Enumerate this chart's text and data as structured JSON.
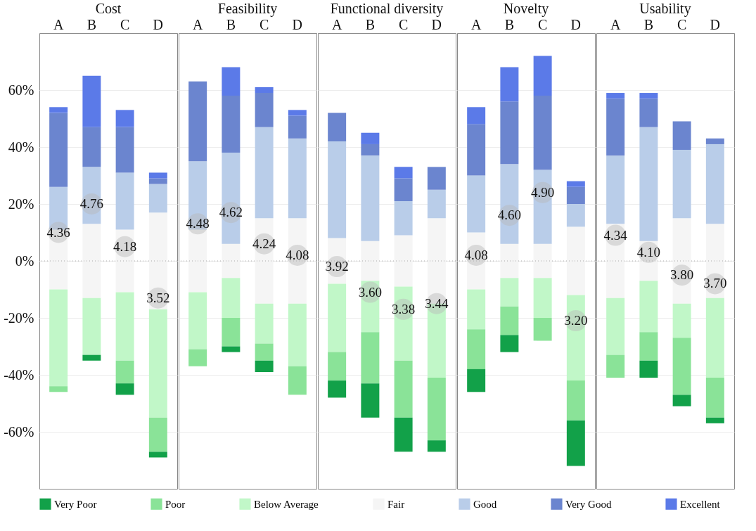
{
  "chart_data": [
    {
      "type": "bar",
      "title": "Cost",
      "categories": [
        "A",
        "B",
        "C",
        "D"
      ],
      "stacked": true,
      "ylim": [
        -80,
        80
      ],
      "yticks": [
        {
          "value": -60,
          "label": "-60%"
        },
        {
          "value": -40,
          "label": "-40%"
        },
        {
          "value": -20,
          "label": "-20%"
        },
        {
          "value": 0,
          "label": "0%"
        },
        {
          "value": 20,
          "label": "20%"
        },
        {
          "value": 40,
          "label": "40%"
        },
        {
          "value": 60,
          "label": "60%"
        }
      ],
      "grid": "y",
      "legend": "bottom",
      "ref_lines": [
        {
          "axis": "y",
          "value": 0,
          "line_style": "dotted"
        }
      ],
      "series": [
        {
          "name": "Fair",
          "color": "#f5f5f5",
          "values": [
            11,
            13,
            11,
            17
          ]
        },
        {
          "name": "Good",
          "color": "#b9cde9",
          "values": [
            15,
            20,
            20,
            10
          ]
        },
        {
          "name": "Very Good",
          "color": "#6b85cf",
          "values": [
            26,
            14,
            16,
            2
          ]
        },
        {
          "name": "Excellent",
          "color": "#5b7ae8",
          "values": [
            2,
            18,
            6,
            2
          ]
        },
        {
          "color": "#f5f5f5",
          "values": [
            -10,
            -13,
            -11,
            -17
          ]
        },
        {
          "name": "Below Average",
          "color": "#c1f7c8",
          "values": [
            -34,
            -20,
            -24,
            -38
          ]
        },
        {
          "name": "Poor",
          "color": "#8ae398",
          "values": [
            -2,
            0,
            -8,
            -12
          ]
        },
        {
          "name": "Very Poor",
          "color": "#12a149",
          "values": [
            0,
            -2,
            -4,
            -2
          ]
        }
      ],
      "annotations": [
        {
          "text": "4.36",
          "x": "A",
          "y": 10
        },
        {
          "text": "4.76",
          "x": "B",
          "y": 20
        },
        {
          "text": "4.18",
          "x": "C",
          "y": 5
        },
        {
          "text": "3.52",
          "x": "D",
          "y": -13
        }
      ]
    },
    {
      "type": "bar",
      "title": "Feasibility",
      "categories": [
        "A",
        "B",
        "C",
        "D"
      ],
      "stacked": true,
      "ylim": [
        -80,
        80
      ],
      "yticks": [
        -60,
        -40,
        -20,
        0,
        20,
        40,
        60
      ],
      "tick_labels": "x",
      "grid": "y",
      "ref_lines": [
        {
          "axis": "y",
          "value": 0,
          "line_style": "dotted"
        }
      ],
      "series": [
        {
          "color": "#f5f5f5",
          "values": [
            11,
            6,
            15,
            15
          ]
        },
        {
          "color": "#b9cde9",
          "values": [
            24,
            32,
            32,
            28
          ]
        },
        {
          "color": "#6b85cf",
          "values": [
            28,
            20,
            12,
            8
          ]
        },
        {
          "color": "#5b7ae8",
          "values": [
            0,
            10,
            2,
            2
          ]
        },
        {
          "color": "#f5f5f5",
          "values": [
            -11,
            -6,
            -15,
            -15
          ]
        },
        {
          "color": "#c1f7c8",
          "values": [
            -20,
            -14,
            -14,
            -22
          ]
        },
        {
          "color": "#8ae398",
          "values": [
            -6,
            -10,
            -6,
            -10
          ]
        },
        {
          "color": "#12a149",
          "values": [
            0,
            -2,
            -4,
            0
          ]
        }
      ],
      "annotations": [
        {
          "text": "4.48",
          "x": "A",
          "y": 13
        },
        {
          "text": "4.62",
          "x": "B",
          "y": 17
        },
        {
          "text": "4.24",
          "x": "C",
          "y": 6
        },
        {
          "text": "4.08",
          "x": "D",
          "y": 2
        }
      ]
    },
    {
      "type": "bar",
      "title": "Functional diversity",
      "categories": [
        "A",
        "B",
        "C",
        "D"
      ],
      "stacked": true,
      "ylim": [
        -80,
        80
      ],
      "yticks": [
        -60,
        -40,
        -20,
        0,
        20,
        40,
        60
      ],
      "tick_labels": "x",
      "grid": "y",
      "ref_lines": [
        {
          "axis": "y",
          "value": 0,
          "line_style": "dotted"
        }
      ],
      "series": [
        {
          "color": "#f5f5f5",
          "values": [
            8,
            7,
            9,
            15
          ]
        },
        {
          "color": "#b9cde9",
          "values": [
            34,
            30,
            12,
            10
          ]
        },
        {
          "color": "#6b85cf",
          "values": [
            10,
            4,
            8,
            8
          ]
        },
        {
          "color": "#5b7ae8",
          "values": [
            0,
            4,
            4,
            0
          ]
        },
        {
          "color": "#f5f5f5",
          "values": [
            -8,
            -7,
            -9,
            -15
          ]
        },
        {
          "color": "#c1f7c8",
          "values": [
            -24,
            -18,
            -26,
            -26
          ]
        },
        {
          "color": "#8ae398",
          "values": [
            -10,
            -18,
            -20,
            -22
          ]
        },
        {
          "color": "#12a149",
          "values": [
            -6,
            -12,
            -12,
            -4
          ]
        }
      ],
      "annotations": [
        {
          "text": "3.92",
          "x": "A",
          "y": -2
        },
        {
          "text": "3.60",
          "x": "B",
          "y": -11
        },
        {
          "text": "3.38",
          "x": "C",
          "y": -17
        },
        {
          "text": "3.44",
          "x": "D",
          "y": -15
        }
      ]
    },
    {
      "type": "bar",
      "title": "Novelty",
      "categories": [
        "A",
        "B",
        "C",
        "D"
      ],
      "stacked": true,
      "ylim": [
        -80,
        80
      ],
      "yticks": [
        -60,
        -40,
        -20,
        0,
        20,
        40,
        60
      ],
      "tick_labels": "x",
      "grid": "y",
      "ref_lines": [
        {
          "axis": "y",
          "value": 0,
          "line_style": "dotted"
        }
      ],
      "series": [
        {
          "color": "#f5f5f5",
          "values": [
            10,
            6,
            6,
            12
          ]
        },
        {
          "color": "#b9cde9",
          "values": [
            20,
            28,
            26,
            8
          ]
        },
        {
          "color": "#6b85cf",
          "values": [
            18,
            22,
            26,
            6
          ]
        },
        {
          "color": "#5b7ae8",
          "values": [
            6,
            12,
            14,
            2
          ]
        },
        {
          "color": "#f5f5f5",
          "values": [
            -10,
            -6,
            -6,
            -12
          ]
        },
        {
          "color": "#c1f7c8",
          "values": [
            -14,
            -10,
            -14,
            -30
          ]
        },
        {
          "color": "#8ae398",
          "values": [
            -14,
            -10,
            -8,
            -14
          ]
        },
        {
          "color": "#12a149",
          "values": [
            -8,
            -6,
            0,
            -16
          ]
        }
      ],
      "annotations": [
        {
          "text": "4.08",
          "x": "A",
          "y": 2
        },
        {
          "text": "4.60",
          "x": "B",
          "y": 16
        },
        {
          "text": "4.90",
          "x": "C",
          "y": 24
        },
        {
          "text": "3.20",
          "x": "D",
          "y": -21
        }
      ]
    },
    {
      "type": "bar",
      "title": "Usability",
      "categories": [
        "A",
        "B",
        "C",
        "D"
      ],
      "stacked": true,
      "ylim": [
        -80,
        80
      ],
      "yticks": [
        -60,
        -40,
        -20,
        0,
        20,
        40,
        60
      ],
      "tick_labels": "x",
      "grid": "y",
      "ref_lines": [
        {
          "axis": "y",
          "value": 0,
          "line_style": "dotted"
        }
      ],
      "series": [
        {
          "color": "#f5f5f5",
          "values": [
            13,
            7,
            15,
            13
          ]
        },
        {
          "color": "#b9cde9",
          "values": [
            24,
            40,
            24,
            28
          ]
        },
        {
          "color": "#6b85cf",
          "values": [
            20,
            10,
            10,
            2
          ]
        },
        {
          "color": "#5b7ae8",
          "values": [
            2,
            2,
            0,
            0
          ]
        },
        {
          "color": "#f5f5f5",
          "values": [
            -13,
            -7,
            -15,
            -13
          ]
        },
        {
          "color": "#c1f7c8",
          "values": [
            -20,
            -18,
            -12,
            -28
          ]
        },
        {
          "color": "#8ae398",
          "values": [
            -8,
            -10,
            -20,
            -14
          ]
        },
        {
          "color": "#12a149",
          "values": [
            0,
            -6,
            -4,
            -2
          ]
        }
      ],
      "annotations": [
        {
          "text": "4.34",
          "x": "A",
          "y": 9
        },
        {
          "text": "4.10",
          "x": "B",
          "y": 3
        },
        {
          "text": "3.80",
          "x": "C",
          "y": -5
        },
        {
          "text": "3.70",
          "x": "D",
          "y": -8
        }
      ]
    }
  ]
}
